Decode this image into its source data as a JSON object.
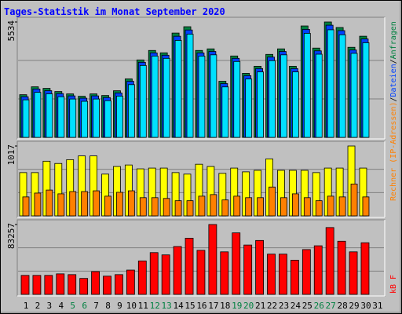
{
  "legend_separator": "/",
  "chart_data": [
    {
      "type": "bar",
      "title": "Tages-Statistik im Monat September 2020",
      "ylim": [
        0,
        5534
      ],
      "yticks": [
        5534
      ],
      "series": [
        {
          "name": "Anfragen",
          "color": "#008040",
          "values": [
            2047,
            2426,
            2350,
            2198,
            2085,
            1971,
            2085,
            2009,
            2236,
            2805,
            3715,
            4169,
            4056,
            5003,
            5307,
            4169,
            4245,
            2691,
            3904,
            3070,
            3411,
            3980,
            4245,
            3411,
            5344,
            4283,
            5534,
            5269,
            4321,
            4852,
            null
          ]
        },
        {
          "name": "Dateien",
          "color": "#0040ff",
          "values": [
            1950,
            2320,
            2240,
            2100,
            1990,
            1880,
            1990,
            1910,
            2130,
            2690,
            3600,
            4050,
            3940,
            4850,
            5150,
            4050,
            4120,
            2580,
            3790,
            2960,
            3300,
            3850,
            4120,
            3300,
            5180,
            4150,
            5380,
            5120,
            4190,
            4720,
            null
          ]
        },
        {
          "color": "#00e0ff",
          "values": [
            1800,
            2160,
            2090,
            1950,
            1840,
            1730,
            1840,
            1760,
            1980,
            2530,
            3450,
            3900,
            3790,
            4650,
            4950,
            3900,
            3960,
            2420,
            3640,
            2800,
            3140,
            3680,
            3960,
            3140,
            4990,
            3990,
            5160,
            4920,
            4030,
            4540,
            null
          ]
        }
      ]
    },
    {
      "type": "bar",
      "ylim": [
        0,
        1017
      ],
      "yticks": [
        1017
      ],
      "series": [
        {
          "color": "#ffff00",
          "values": [
            630,
            630,
            796,
            763,
            818,
            873,
            873,
            608,
            719,
            741,
            685,
            696,
            696,
            630,
            608,
            752,
            719,
            619,
            696,
            641,
            663,
            829,
            663,
            663,
            663,
            630,
            696,
            696,
            1017,
            696,
            null
          ]
        },
        {
          "name": "Rechner (IP-Adressen)",
          "color": "#ff8000",
          "values": [
            276,
            332,
            376,
            321,
            354,
            354,
            365,
            287,
            343,
            365,
            265,
            265,
            254,
            221,
            221,
            287,
            310,
            232,
            287,
            265,
            265,
            420,
            265,
            321,
            265,
            221,
            287,
            276,
            464,
            276,
            null
          ]
        }
      ]
    },
    {
      "type": "bar",
      "ylim": [
        0,
        83257
      ],
      "yticks": [
        83257
      ],
      "categories": [
        "1",
        "2",
        "3",
        "4",
        "5",
        "6",
        "7",
        "8",
        "9",
        "10",
        "11",
        "12",
        "13",
        "14",
        "15",
        "16",
        "17",
        "18",
        "19",
        "20",
        "21",
        "22",
        "23",
        "24",
        "25",
        "26",
        "27",
        "28",
        "29",
        "30",
        "31"
      ],
      "category_colors": [
        "#000000",
        "#000000",
        "#000000",
        "#000000",
        "#008040",
        "#008040",
        "#000000",
        "#000000",
        "#000000",
        "#000000",
        "#000000",
        "#008040",
        "#008040",
        "#000000",
        "#000000",
        "#000000",
        "#000000",
        "#000000",
        "#008040",
        "#008040",
        "#000000",
        "#000000",
        "#000000",
        "#000000",
        "#000000",
        "#008040",
        "#008040",
        "#000000",
        "#000000",
        "#000000",
        "#000000"
      ],
      "series": [
        {
          "name": "kB F",
          "color": "#ff0000",
          "values": [
            22624,
            22624,
            22624,
            24434,
            23529,
            19004,
            27149,
            21719,
            23529,
            28959,
            39818,
            49773,
            47058,
            57013,
            66967,
            52488,
            83257,
            50678,
            73302,
            58823,
            64253,
            47963,
            47963,
            40723,
            53393,
            57918,
            79637,
            63347,
            50678,
            61537,
            null
          ]
        }
      ]
    }
  ]
}
